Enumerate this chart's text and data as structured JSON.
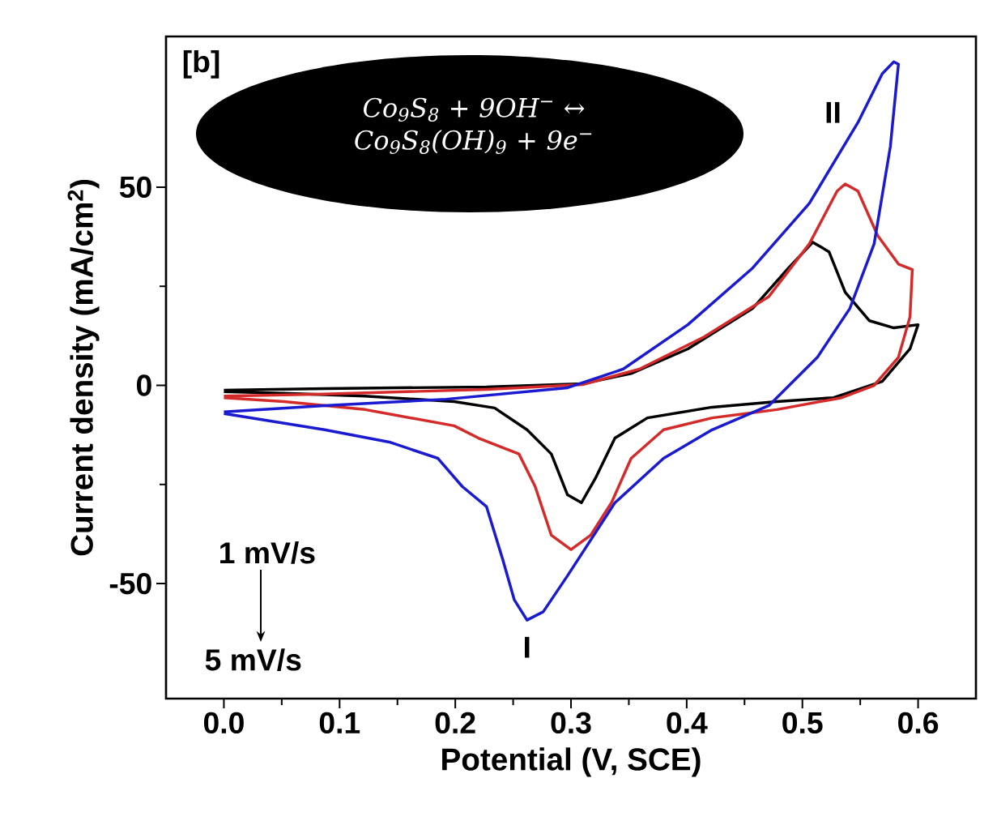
{
  "chart_data": {
    "type": "line",
    "xlabel": "Potential (V, SCE)",
    "ylabel": "Current density (mA/cm$^{2}$)",
    "xlim": [
      -0.05,
      0.65
    ],
    "ylim": [
      -79,
      88
    ],
    "xticks": [
      {
        "value": 0,
        "label": "0.0"
      },
      {
        "value": 0.1,
        "label": "0.1"
      },
      {
        "value": 0.2,
        "label": "0.2"
      },
      {
        "value": 0.3,
        "label": "0.3"
      },
      {
        "value": 0.4,
        "label": "0.4"
      },
      {
        "value": 0.5,
        "label": "0.5"
      },
      {
        "value": 0.6,
        "label": "0.6"
      }
    ],
    "yticks": [
      -50,
      0,
      50
    ],
    "grid": false,
    "marker": "none",
    "line_style": "solid",
    "series": [
      {
        "color": "#000000",
        "x": [
          0,
          0.087,
          0.227,
          0.31,
          0.352,
          0.401,
          0.457,
          0.488,
          0.509,
          0.523,
          0.537,
          0.558,
          0.579,
          0.6,
          0.593,
          0.569,
          0.527,
          0.478,
          0.422,
          0.366,
          0.338,
          0.321,
          0.309,
          0.297,
          0.283,
          0.262,
          0.234,
          0.199,
          0.122,
          0.052,
          0
        ],
        "values": [
          -1.2,
          -0.8,
          -0.4,
          0.4,
          3,
          9.2,
          19.4,
          29.6,
          36.1,
          33.7,
          23.5,
          16.3,
          14.5,
          15.3,
          9.2,
          1,
          -3.1,
          -4.1,
          -5.5,
          -8.2,
          -13.3,
          -23.5,
          -29.6,
          -27.6,
          -17.3,
          -11.2,
          -5.7,
          -4.1,
          -2.7,
          -2,
          -1.6
        ]
      },
      {
        "color": "#d42a2a",
        "x": [
          0,
          0.087,
          0.227,
          0.31,
          0.359,
          0.415,
          0.471,
          0.506,
          0.53,
          0.537,
          0.548,
          0.565,
          0.583,
          0.595,
          0.593,
          0.583,
          0.562,
          0.534,
          0.478,
          0.422,
          0.38,
          0.352,
          0.335,
          0.317,
          0.3,
          0.283,
          0.269,
          0.255,
          0.22,
          0.199,
          0.122,
          0.052,
          0
        ],
        "values": [
          -2.7,
          -2.2,
          -1,
          0.2,
          4.1,
          12.2,
          22.4,
          35.7,
          49,
          50.8,
          49,
          37.8,
          30.6,
          29.2,
          17.3,
          7.1,
          0,
          -3.1,
          -6.1,
          -8.2,
          -11.2,
          -18.4,
          -29.6,
          -37.8,
          -41.4,
          -37.8,
          -25.5,
          -17.3,
          -13.3,
          -10.2,
          -6.1,
          -4.1,
          -3.1
        ]
      },
      {
        "color": "#1a1ad0",
        "x": [
          0,
          0.087,
          0.192,
          0.297,
          0.345,
          0.401,
          0.457,
          0.506,
          0.548,
          0.569,
          0.579,
          0.583,
          0.576,
          0.562,
          0.541,
          0.513,
          0.471,
          0.422,
          0.38,
          0.338,
          0.297,
          0.276,
          0.262,
          0.251,
          0.241,
          0.227,
          0.206,
          0.185,
          0.143,
          0.087,
          0
        ],
        "values": [
          -6.7,
          -5.1,
          -3.5,
          -0.6,
          4.1,
          15.3,
          29.6,
          45.9,
          66.3,
          78.6,
          81.6,
          81,
          60.2,
          35.7,
          19.4,
          7.1,
          -5.1,
          -11.2,
          -18.4,
          -29.6,
          -48,
          -57.1,
          -59.2,
          -54.1,
          -43.9,
          -30.6,
          -25.5,
          -18.4,
          -14.3,
          -11.2,
          -7.1
        ]
      }
    ],
    "annotations": [
      "[b]",
      "Co$_{9}$S$_{8}$ + 9OH$^{−}$ ↔ Co$_{9}$S$_{8}$(OH)$_{9}$ + 9e$^{−}$",
      {
        "text": "II",
        "x": 0.579,
        "y": 81.6
      },
      {
        "text": "I",
        "x": 0.262,
        "y": -59.2
      },
      "1 mV/s",
      "5 mV/s"
    ]
  }
}
